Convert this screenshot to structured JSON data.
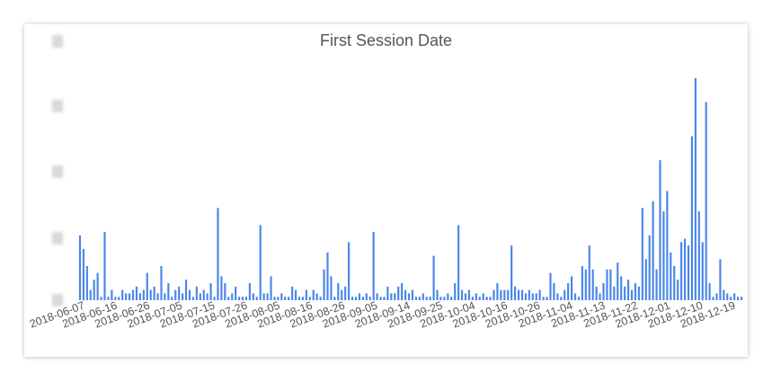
{
  "chart_data": {
    "type": "bar",
    "title": "First Session Date",
    "xlabel": "",
    "ylabel": "",
    "x_tick_labels": [
      "2018-06-07",
      "2018-06-16",
      "2018-06-26",
      "2018-07-05",
      "2018-07-15",
      "2018-07-26",
      "2018-08-05",
      "2018-08-16",
      "2018-08-26",
      "2018-09-05",
      "2018-09-14",
      "2018-09-25",
      "2018-10-04",
      "2018-10-16",
      "2018-10-26",
      "2018-11-04",
      "2018-11-13",
      "2018-11-22",
      "2018-12-01",
      "2018-12-10",
      "2018-12-19"
    ],
    "y_axis_values_obscured": true,
    "grid": false,
    "legend": "none",
    "bar_color": "#4a86e8",
    "values": [
      19,
      15,
      10,
      3,
      6,
      8,
      1,
      20,
      1,
      3,
      1,
      1,
      3,
      2,
      2,
      3,
      4,
      2,
      3,
      8,
      3,
      4,
      2,
      10,
      2,
      5,
      1,
      3,
      4,
      2,
      6,
      3,
      1,
      4,
      2,
      3,
      2,
      5,
      1,
      27,
      7,
      5,
      1,
      2,
      4,
      1,
      1,
      1,
      5,
      2,
      1,
      22,
      2,
      2,
      7,
      1,
      1,
      2,
      1,
      1,
      4,
      3,
      1,
      1,
      3,
      1,
      3,
      2,
      1,
      9,
      14,
      7,
      1,
      5,
      3,
      4,
      17,
      1,
      1,
      2,
      1,
      2,
      1,
      20,
      2,
      1,
      1,
      4,
      2,
      2,
      4,
      5,
      3,
      2,
      3,
      1,
      1,
      2,
      1,
      1,
      13,
      3,
      1,
      1,
      2,
      1,
      5,
      22,
      3,
      2,
      3,
      1,
      2,
      1,
      2,
      1,
      1,
      3,
      5,
      3,
      3,
      3,
      16,
      4,
      3,
      3,
      2,
      3,
      2,
      2,
      3,
      1,
      1,
      8,
      5,
      2,
      1,
      3,
      5,
      7,
      2,
      1,
      10,
      9,
      16,
      9,
      4,
      2,
      5,
      9,
      9,
      4,
      11,
      7,
      4,
      6,
      3,
      5,
      4,
      27,
      12,
      19,
      29,
      9,
      41,
      26,
      32,
      14,
      10,
      6,
      17,
      18,
      16,
      48,
      65,
      26,
      17,
      58,
      5,
      1,
      2,
      12,
      3,
      2,
      1,
      2,
      1,
      1
    ]
  }
}
